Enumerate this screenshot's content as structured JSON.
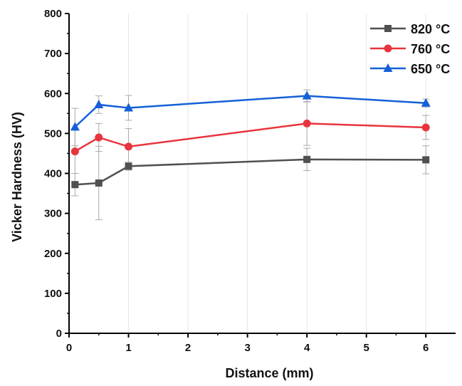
{
  "chart_data": {
    "type": "line",
    "xlabel": "Distance (mm)",
    "ylabel": "Vicker Hardness (HV)",
    "xlim": [
      0,
      6.5
    ],
    "ylim": [
      0,
      800
    ],
    "xticks": [
      0,
      1,
      2,
      3,
      4,
      5,
      6
    ],
    "yticks": [
      0,
      100,
      200,
      300,
      400,
      500,
      600,
      700,
      800
    ],
    "grid": "vertical",
    "legend_position": "top-right",
    "series": [
      {
        "name": "820 °C",
        "color": "#505050",
        "marker": "square",
        "x": [
          0.1,
          0.5,
          1,
          4,
          6
        ],
        "y": [
          372,
          376,
          418,
          435,
          434
        ],
        "error": [
          28,
          92,
          10,
          28,
          35
        ]
      },
      {
        "name": "760 °C",
        "color": "#e8343c",
        "marker": "circle",
        "x": [
          0.1,
          0.5,
          1,
          4,
          6
        ],
        "y": [
          455,
          490,
          467,
          525,
          515
        ],
        "error": [
          55,
          35,
          45,
          55,
          30
        ]
      },
      {
        "name": "650 °C",
        "color": "#1560d8",
        "marker": "triangle",
        "x": [
          0.1,
          0.5,
          1,
          4,
          6
        ],
        "y": [
          516,
          572,
          564,
          594,
          576
        ],
        "error": [
          47,
          22,
          31,
          15,
          10
        ]
      }
    ]
  }
}
